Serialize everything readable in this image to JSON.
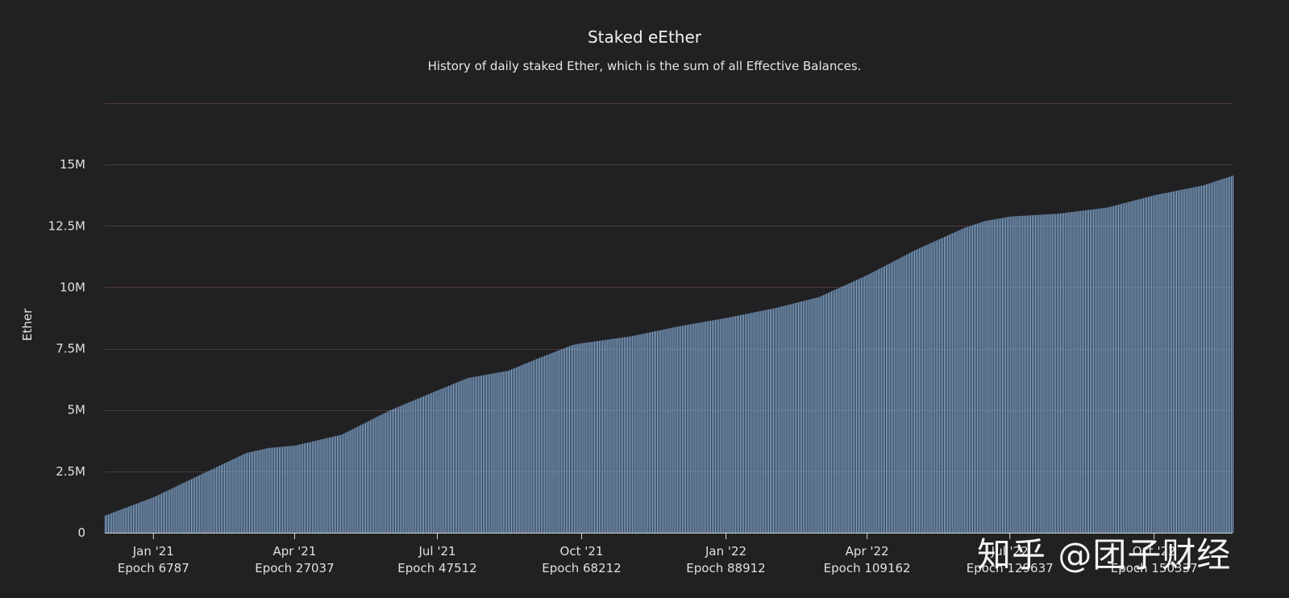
{
  "chart_data": {
    "type": "bar",
    "title": "Staked eEther",
    "subtitle": "History of daily staked Ether, which is the sum of all Effective Balances.",
    "ylabel": "Ether",
    "xlabel": "",
    "ylim": [
      0,
      17500000
    ],
    "yticks": [
      {
        "value": 0,
        "label": "0"
      },
      {
        "value": 2500000,
        "label": "2.5M"
      },
      {
        "value": 5000000,
        "label": "5M"
      },
      {
        "value": 7500000,
        "label": "7.5M"
      },
      {
        "value": 10000000,
        "label": "10M"
      },
      {
        "value": 12500000,
        "label": "12.5M"
      },
      {
        "value": 15000000,
        "label": "15M"
      }
    ],
    "xlim": [
      "2020-12-01",
      "2022-11-20"
    ],
    "xticks": [
      {
        "date": "2021-01-01",
        "month": "Jan '21",
        "epoch": "Epoch 6787"
      },
      {
        "date": "2021-04-01",
        "month": "Apr '21",
        "epoch": "Epoch 27037"
      },
      {
        "date": "2021-07-01",
        "month": "Jul '21",
        "epoch": "Epoch 47512"
      },
      {
        "date": "2021-10-01",
        "month": "Oct '21",
        "epoch": "Epoch 68212"
      },
      {
        "date": "2022-01-01",
        "month": "Jan '22",
        "epoch": "Epoch 88912"
      },
      {
        "date": "2022-04-01",
        "month": "Apr '22",
        "epoch": "Epoch 109162"
      },
      {
        "date": "2022-07-01",
        "month": "Jul '22",
        "epoch": "Epoch 129637"
      },
      {
        "date": "2022-10-01",
        "month": "Oct '22",
        "epoch": "Epoch 150337"
      }
    ],
    "series": [
      {
        "daily": true,
        "color": "#8ebbe8",
        "points": [
          [
            "2020-12-01",
            700000
          ],
          [
            "2021-01-01",
            1450000
          ],
          [
            "2021-02-01",
            2400000
          ],
          [
            "2021-03-01",
            3250000
          ],
          [
            "2021-03-15",
            3450000
          ],
          [
            "2021-04-01",
            3550000
          ],
          [
            "2021-05-01",
            4000000
          ],
          [
            "2021-06-01",
            5000000
          ],
          [
            "2021-07-01",
            5800000
          ],
          [
            "2021-07-20",
            6300000
          ],
          [
            "2021-08-15",
            6600000
          ],
          [
            "2021-09-01",
            7050000
          ],
          [
            "2021-09-25",
            7650000
          ],
          [
            "2021-10-01",
            7720000
          ],
          [
            "2021-11-01",
            8000000
          ],
          [
            "2021-12-01",
            8400000
          ],
          [
            "2022-01-01",
            8750000
          ],
          [
            "2022-02-01",
            9150000
          ],
          [
            "2022-03-01",
            9600000
          ],
          [
            "2022-04-01",
            10500000
          ],
          [
            "2022-05-01",
            11500000
          ],
          [
            "2022-06-01",
            12400000
          ],
          [
            "2022-06-15",
            12700000
          ],
          [
            "2022-07-01",
            12880000
          ],
          [
            "2022-08-01",
            13000000
          ],
          [
            "2022-09-01",
            13250000
          ],
          [
            "2022-10-01",
            13750000
          ],
          [
            "2022-11-01",
            14150000
          ],
          [
            "2022-11-20",
            14550000
          ]
        ]
      }
    ],
    "grid": true,
    "gridColor": "#4e3a3a",
    "axisColor": "#d8d8d8"
  },
  "watermark": "知乎 @团子财经"
}
